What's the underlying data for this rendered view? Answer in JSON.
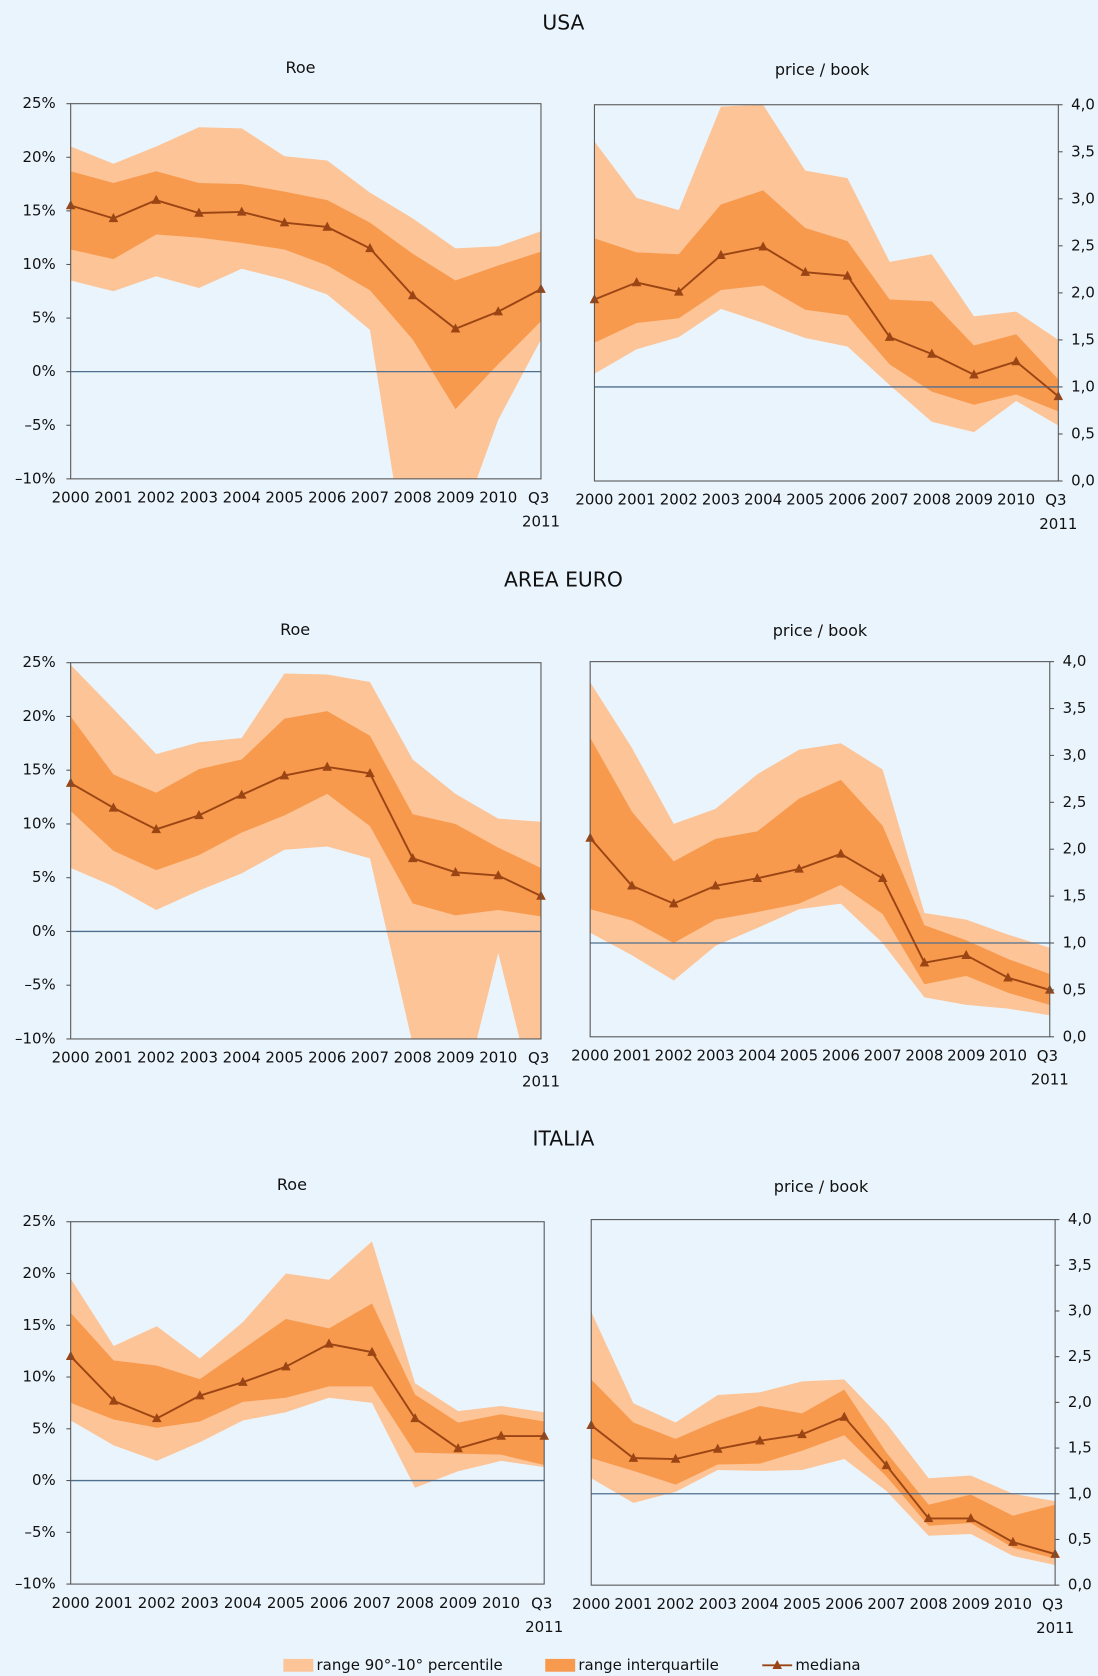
{
  "section_titles": [
    "USA",
    "AREA EURO",
    "ITALIA"
  ],
  "legend": [
    {
      "name": "range 90°-10° percentile",
      "color": "#fcc497"
    },
    {
      "name": "range interquartile",
      "color": "#f79a4e"
    },
    {
      "name": "mediana",
      "color": "#9c4514"
    }
  ],
  "chart_data": [
    {
      "type": "band-line",
      "title": "Roe",
      "axis_side": "left",
      "categories": [
        "2000",
        "2001",
        "2002",
        "2003",
        "2004",
        "2005",
        "2006",
        "2007",
        "2008",
        "2009",
        "2010",
        "Q3 2011"
      ],
      "ylim": [
        -10,
        25
      ],
      "yticks": [
        {
          "value": 25,
          "label": "25%"
        },
        {
          "value": 20,
          "label": "20%"
        },
        {
          "value": 15,
          "label": "15%"
        },
        {
          "value": 10,
          "label": "10%"
        },
        {
          "value": 5,
          "label": "5%"
        },
        {
          "value": 0,
          "label": "0%"
        },
        {
          "value": -5,
          "label": "–5%"
        },
        {
          "value": -10,
          "label": "–10%"
        }
      ],
      "ref_line": 0,
      "series": [
        {
          "low": [
            8.5,
            7.5,
            8.9,
            7.8,
            9.6,
            8.6,
            7.2,
            3.9,
            -21.4,
            -15.5,
            -4.5,
            3
          ],
          "high": [
            21,
            19.4,
            21,
            22.8,
            22.7,
            20.1,
            19.7,
            16.7,
            14.3,
            11.5,
            11.7,
            13.1
          ]
        },
        {
          "low": [
            11.4,
            10.5,
            12.8,
            12.5,
            12,
            11.4,
            9.9,
            7.6,
            3,
            -3.5,
            0.7,
            4.7
          ],
          "high": [
            18.7,
            17.6,
            18.7,
            17.6,
            17.5,
            16.8,
            16,
            13.9,
            11,
            8.5,
            9.9,
            11.2
          ]
        },
        {
          "values": [
            15.5,
            14.3,
            16,
            14.8,
            14.9,
            13.9,
            13.5,
            11.5,
            7.1,
            4,
            5.6,
            7.7
          ]
        }
      ]
    },
    {
      "type": "band-line",
      "title": "price / book",
      "axis_side": "right",
      "categories": [
        "2000",
        "2001",
        "2002",
        "2003",
        "2004",
        "2005",
        "2006",
        "2007",
        "2008",
        "2009",
        "2010",
        "Q3 2011"
      ],
      "ylim": [
        0,
        4
      ],
      "yticks": [
        {
          "value": 4,
          "label": "4,0"
        },
        {
          "value": 3.5,
          "label": "3,5"
        },
        {
          "value": 3,
          "label": "3,0"
        },
        {
          "value": 2.5,
          "label": "2,5"
        },
        {
          "value": 2,
          "label": "2,0"
        },
        {
          "value": 1.5,
          "label": "1,5"
        },
        {
          "value": 1,
          "label": "1,0"
        },
        {
          "value": 0.5,
          "label": "0,5"
        },
        {
          "value": 0,
          "label": "0,0"
        }
      ],
      "ref_line": 1,
      "series": [
        {
          "low": [
            1.14,
            1.4,
            1.53,
            1.83,
            1.68,
            1.52,
            1.43,
            1.02,
            0.63,
            0.52,
            0.85,
            0.59
          ],
          "high": [
            3.61,
            3.01,
            2.88,
            3.98,
            4.0,
            3.3,
            3.22,
            2.33,
            2.41,
            1.75,
            1.8,
            1.5
          ]
        },
        {
          "low": [
            1.47,
            1.68,
            1.73,
            2.03,
            2.08,
            1.82,
            1.76,
            1.24,
            0.95,
            0.81,
            0.92,
            0.74
          ],
          "high": [
            2.58,
            2.43,
            2.41,
            2.94,
            3.09,
            2.69,
            2.55,
            1.93,
            1.91,
            1.44,
            1.56,
            1.08
          ]
        },
        {
          "values": [
            1.93,
            2.11,
            2.01,
            2.4,
            2.49,
            2.22,
            2.18,
            1.53,
            1.35,
            1.13,
            1.27,
            0.9
          ]
        }
      ]
    },
    {
      "type": "band-line",
      "title": "Roe",
      "axis_side": "left",
      "categories": [
        "2000",
        "2001",
        "2002",
        "2003",
        "2004",
        "2005",
        "2006",
        "2007",
        "2008",
        "2009",
        "2010",
        "Q3 2011"
      ],
      "ylim": [
        -10,
        25
      ],
      "yticks": [
        {
          "value": 25,
          "label": "25%"
        },
        {
          "value": 20,
          "label": "20%"
        },
        {
          "value": 15,
          "label": "15%"
        },
        {
          "value": 10,
          "label": "10%"
        },
        {
          "value": 5,
          "label": "5%"
        },
        {
          "value": 0,
          "label": "0%"
        },
        {
          "value": -5,
          "label": "–5%"
        },
        {
          "value": -10,
          "label": "–10%"
        }
      ],
      "ref_line": 0,
      "series": [
        {
          "low": [
            5.9,
            4.2,
            2,
            3.8,
            5.4,
            7.6,
            7.9,
            6.8,
            -10.5,
            -18,
            -2,
            -18
          ],
          "high": [
            24.8,
            20.7,
            16.5,
            17.6,
            18,
            24,
            23.9,
            23.2,
            16,
            12.8,
            10.5,
            10.2
          ]
        },
        {
          "low": [
            11.2,
            7.5,
            5.7,
            7.1,
            9.2,
            10.8,
            12.8,
            9.8,
            2.6,
            1.5,
            2,
            1.4
          ],
          "high": [
            20,
            14.6,
            12.9,
            15.1,
            16,
            19.8,
            20.5,
            18.2,
            10.9,
            10,
            7.8,
            5.9
          ]
        },
        {
          "values": [
            13.8,
            11.5,
            9.5,
            10.8,
            12.7,
            14.5,
            15.3,
            14.7,
            6.8,
            5.5,
            5.2,
            3.3
          ]
        }
      ]
    },
    {
      "type": "band-line",
      "title": "price / book",
      "axis_side": "right",
      "categories": [
        "2000",
        "2001",
        "2002",
        "2003",
        "2004",
        "2005",
        "2006",
        "2007",
        "2008",
        "2009",
        "2010",
        "Q3 2011"
      ],
      "ylim": [
        0,
        4
      ],
      "yticks": [
        {
          "value": 4,
          "label": "4,0"
        },
        {
          "value": 3.5,
          "label": "3,5"
        },
        {
          "value": 3,
          "label": "3,0"
        },
        {
          "value": 2.5,
          "label": "2,5"
        },
        {
          "value": 2,
          "label": "2,0"
        },
        {
          "value": 1.5,
          "label": "1,5"
        },
        {
          "value": 1,
          "label": "1,0"
        },
        {
          "value": 0.5,
          "label": "0,5"
        },
        {
          "value": 0,
          "label": "0,0"
        }
      ],
      "ref_line": 1,
      "series": [
        {
          "low": [
            1.11,
            0.87,
            0.6,
            0.97,
            1.16,
            1.36,
            1.42,
            1.0,
            0.42,
            0.34,
            0.3,
            0.23
          ],
          "high": [
            3.78,
            3.08,
            2.27,
            2.43,
            2.8,
            3.06,
            3.13,
            2.85,
            1.32,
            1.25,
            1.09,
            0.95
          ]
        },
        {
          "low": [
            1.36,
            1.24,
            1.0,
            1.25,
            1.33,
            1.42,
            1.62,
            1.31,
            0.56,
            0.65,
            0.47,
            0.34
          ],
          "high": [
            3.19,
            2.4,
            1.87,
            2.11,
            2.19,
            2.54,
            2.74,
            2.25,
            1.19,
            1.03,
            0.83,
            0.67
          ]
        },
        {
          "values": [
            2.12,
            1.61,
            1.42,
            1.61,
            1.69,
            1.79,
            1.95,
            1.69,
            0.79,
            0.87,
            0.63,
            0.5
          ]
        }
      ]
    },
    {
      "type": "band-line",
      "title": "Roe",
      "axis_side": "left",
      "categories": [
        "2000",
        "2001",
        "2002",
        "2003",
        "2004",
        "2005",
        "2006",
        "2007",
        "2008",
        "2009",
        "2010",
        "Q3 2011"
      ],
      "ylim": [
        -10,
        25
      ],
      "yticks": [
        {
          "value": 25,
          "label": "25%"
        },
        {
          "value": 20,
          "label": "20%"
        },
        {
          "value": 15,
          "label": "15%"
        },
        {
          "value": 10,
          "label": "10%"
        },
        {
          "value": 5,
          "label": "5%"
        },
        {
          "value": 0,
          "label": "0%"
        },
        {
          "value": -5,
          "label": "–5%"
        },
        {
          "value": -10,
          "label": "–10%"
        }
      ],
      "ref_line": 0,
      "series": [
        {
          "low": [
            5.8,
            3.4,
            1.9,
            3.7,
            5.8,
            6.6,
            8,
            7.5,
            -0.7,
            0.9,
            1.9,
            1.3
          ],
          "high": [
            19.5,
            13,
            14.9,
            11.8,
            15.3,
            20,
            19.4,
            23.1,
            9.4,
            6.7,
            7.2,
            6.6
          ]
        },
        {
          "low": [
            7.5,
            5.9,
            5.1,
            5.7,
            7.6,
            8,
            9.1,
            9.1,
            2.7,
            2.6,
            2.5,
            1.5
          ],
          "high": [
            16.2,
            11.6,
            11.1,
            9.8,
            12.7,
            15.6,
            14.7,
            17.1,
            8.3,
            5.6,
            6.4,
            5.7
          ]
        },
        {
          "values": [
            12,
            7.7,
            6,
            8.2,
            9.5,
            11,
            13.2,
            12.4,
            6,
            3.1,
            4.3,
            4.3
          ]
        }
      ]
    },
    {
      "type": "band-line",
      "title": "price / book",
      "axis_side": "right",
      "categories": [
        "2000",
        "2001",
        "2002",
        "2003",
        "2004",
        "2005",
        "2006",
        "2007",
        "2008",
        "2009",
        "2010",
        "Q3 2011"
      ],
      "ylim": [
        0,
        4
      ],
      "yticks": [
        {
          "value": 4,
          "label": "4,0"
        },
        {
          "value": 3.5,
          "label": "3,5"
        },
        {
          "value": 3,
          "label": "3,0"
        },
        {
          "value": 2.5,
          "label": "2,5"
        },
        {
          "value": 2,
          "label": "2,0"
        },
        {
          "value": 1.5,
          "label": "1,5"
        },
        {
          "value": 1,
          "label": "1,0"
        },
        {
          "value": 0.5,
          "label": "0,5"
        },
        {
          "value": 0,
          "label": "0,0"
        }
      ],
      "ref_line": 1,
      "series": [
        {
          "low": [
            1.17,
            0.9,
            1.02,
            1.26,
            1.25,
            1.26,
            1.38,
            1.03,
            0.54,
            0.56,
            0.32,
            0.22
          ],
          "high": [
            2.99,
            1.99,
            1.78,
            2.08,
            2.11,
            2.23,
            2.25,
            1.77,
            1.17,
            1.2,
            1.0,
            0.92
          ]
        },
        {
          "low": [
            1.39,
            1.25,
            1.1,
            1.32,
            1.33,
            1.47,
            1.64,
            1.19,
            0.65,
            0.68,
            0.41,
            0.29
          ],
          "high": [
            2.25,
            1.78,
            1.6,
            1.8,
            1.96,
            1.88,
            2.14,
            1.45,
            0.88,
            0.99,
            0.76,
            0.88
          ]
        },
        {
          "values": [
            1.75,
            1.39,
            1.38,
            1.49,
            1.58,
            1.65,
            1.84,
            1.31,
            0.73,
            0.73,
            0.47,
            0.34
          ]
        }
      ]
    }
  ]
}
